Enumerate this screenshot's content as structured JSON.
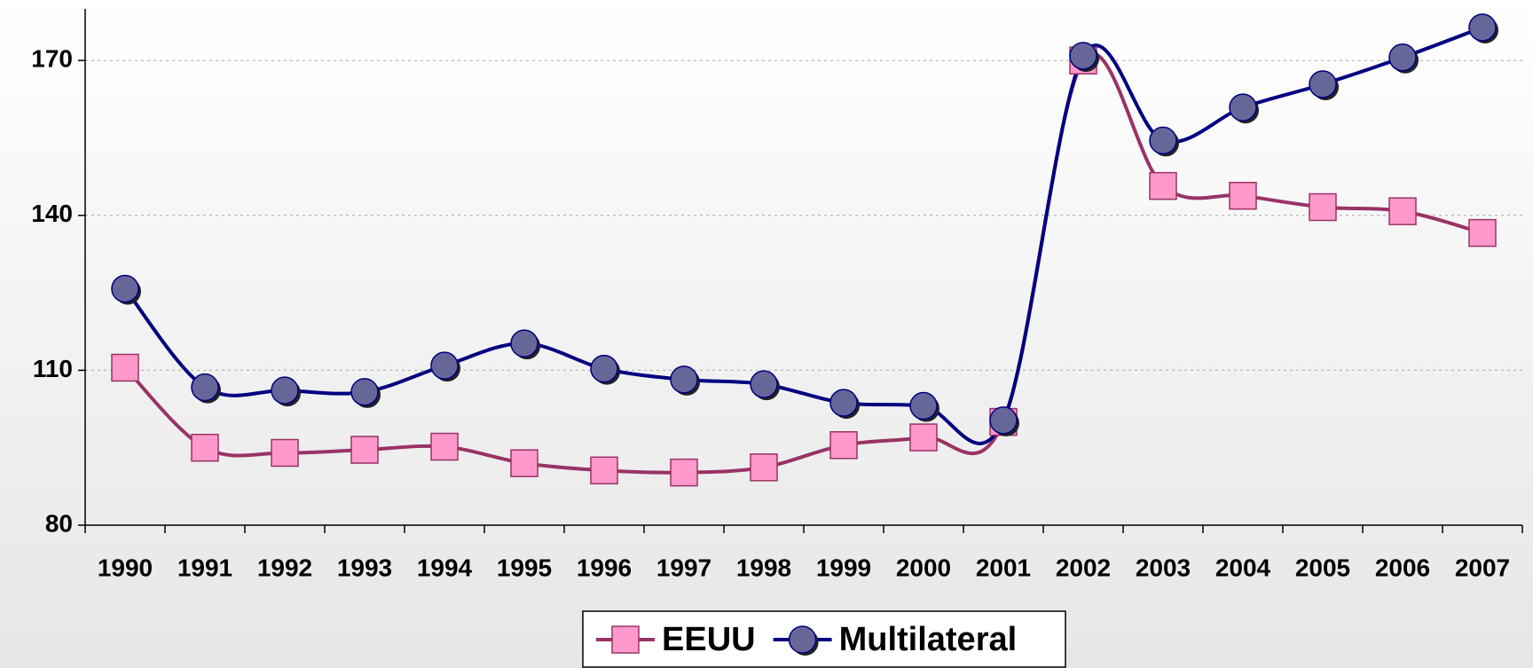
{
  "chart_data": {
    "type": "line",
    "categories": [
      "1990",
      "1991",
      "1992",
      "1993",
      "1994",
      "1995",
      "1996",
      "1997",
      "1998",
      "1999",
      "2000",
      "2001",
      "2002",
      "2003",
      "2004",
      "2005",
      "2006",
      "2007"
    ],
    "series": [
      {
        "name": "EEUU",
        "color": "#993366",
        "marker": "square",
        "marker_color": "#ff99cc",
        "values": [
          110.5,
          95,
          94,
          94.6,
          95.2,
          92,
          90.6,
          90.2,
          91.2,
          95.5,
          97,
          100,
          170,
          145.7,
          143.8,
          141.6,
          140.8,
          136.6
        ]
      },
      {
        "name": "Multilateral",
        "color": "#000080",
        "marker": "circle",
        "marker_color": "#666699",
        "values": [
          125.8,
          106.7,
          106.1,
          105.8,
          110.9,
          115.2,
          110.3,
          108.2,
          107.3,
          103.7,
          103.1,
          100.3,
          170.9,
          154.5,
          160.9,
          165.4,
          170.6,
          176.4
        ]
      }
    ],
    "ylim": [
      80,
      180
    ],
    "yticks": [
      80,
      110,
      140,
      170
    ],
    "grid": true,
    "legend": "bottom"
  }
}
